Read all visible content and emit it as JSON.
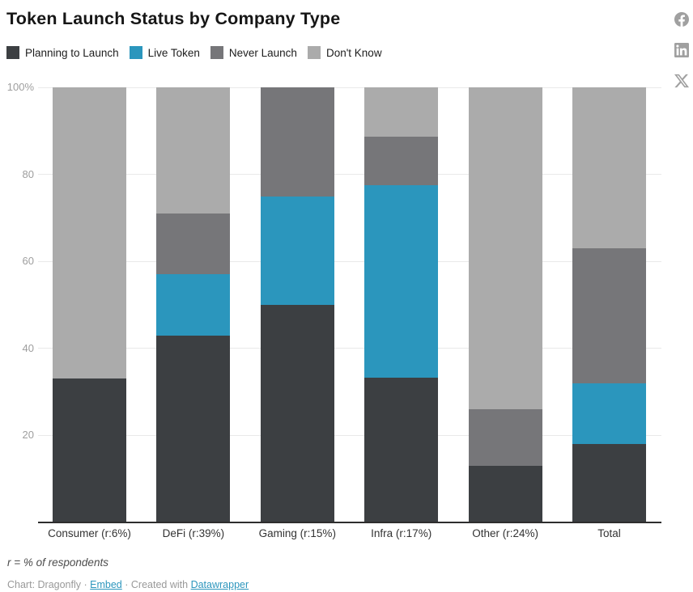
{
  "header": {
    "title": "Token Launch Status by Company Type"
  },
  "social_icons": [
    "facebook-icon",
    "linkedin-icon",
    "x-icon"
  ],
  "colors": {
    "planning": "#3c3f42",
    "live": "#2b96bd",
    "never": "#767679",
    "dont_know": "#ababab",
    "link": "#2d96bd",
    "icon_gray": "#a0a0a0",
    "gridline": "#e9e9e9",
    "axis": "#2e2e2e"
  },
  "legend": [
    {
      "label": "Planning to Launch",
      "color": "#3c3f42"
    },
    {
      "label": "Live Token",
      "color": "#2b96bd"
    },
    {
      "label": "Never Launch",
      "color": "#767679"
    },
    {
      "label": "Don't Know",
      "color": "#ababab"
    }
  ],
  "chart_data": {
    "type": "bar",
    "stacked": true,
    "unit": "%",
    "title": "Token Launch Status by Company Type",
    "categories": [
      "Consumer (r:6%)",
      "DeFi (r:39%)",
      "Gaming (r:15%)",
      "Infra (r:17%)",
      "Other (r:24%)",
      "Total"
    ],
    "series": [
      {
        "name": "Planning to Launch",
        "color": "#3c3f42",
        "values": [
          33,
          43,
          50,
          33.3,
          13,
          18
        ]
      },
      {
        "name": "Live Token",
        "color": "#2b96bd",
        "values": [
          0,
          14,
          25,
          44.2,
          0,
          14
        ]
      },
      {
        "name": "Never Launch",
        "color": "#767679",
        "values": [
          0,
          14,
          25,
          11.1,
          13,
          31
        ]
      },
      {
        "name": "Don't Know",
        "color": "#ababab",
        "values": [
          67,
          29,
          0,
          11.4,
          74,
          37
        ]
      }
    ],
    "ylim": [
      0,
      100
    ],
    "yticks": [
      {
        "value": 100,
        "label": "100%"
      },
      {
        "value": 80,
        "label": "80"
      },
      {
        "value": 60,
        "label": "60"
      },
      {
        "value": 40,
        "label": "40"
      },
      {
        "value": 20,
        "label": "20"
      }
    ],
    "grid": true,
    "legend_position": "top",
    "xlabel": "",
    "ylabel": ""
  },
  "footer": {
    "note": "r = % of respondents",
    "attribution_prefix": "Chart: Dragonfly",
    "separator": "·",
    "embed_link": "Embed",
    "created_with_text": "Created with",
    "datawrapper_link": "Datawrapper"
  }
}
